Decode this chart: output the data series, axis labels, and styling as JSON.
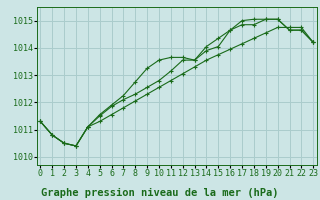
{
  "title": "Graphe pression niveau de la mer (hPa)",
  "background_color": "#cce5e5",
  "grid_color": "#aacccc",
  "line_color": "#1a6b1a",
  "x_values": [
    0,
    1,
    2,
    3,
    4,
    5,
    6,
    7,
    8,
    9,
    10,
    11,
    12,
    13,
    14,
    15,
    16,
    17,
    18,
    19,
    20,
    21,
    22,
    23
  ],
  "line1": [
    1011.3,
    1010.8,
    1010.5,
    1010.4,
    1011.1,
    1011.5,
    1011.85,
    1012.1,
    1012.3,
    1012.55,
    1012.8,
    1013.15,
    1013.55,
    1013.55,
    1013.9,
    1014.05,
    1014.65,
    1015.0,
    1015.05,
    1015.05,
    1015.05,
    1014.65,
    1014.65,
    1014.2
  ],
  "line2": [
    1011.3,
    1010.8,
    1010.5,
    1010.4,
    1011.1,
    1011.55,
    1011.9,
    1012.25,
    1012.75,
    1013.25,
    1013.55,
    1013.65,
    1013.65,
    1013.55,
    1014.05,
    1014.35,
    1014.65,
    1014.85,
    1014.85,
    1015.05,
    1015.05,
    1014.65,
    1014.65,
    1014.2
  ],
  "line3": [
    1011.3,
    1010.8,
    1010.5,
    1010.4,
    1011.1,
    1011.3,
    1011.55,
    1011.8,
    1012.05,
    1012.3,
    1012.55,
    1012.8,
    1013.05,
    1013.3,
    1013.55,
    1013.75,
    1013.95,
    1014.15,
    1014.35,
    1014.55,
    1014.75,
    1014.75,
    1014.75,
    1014.2
  ],
  "ylim": [
    1009.7,
    1015.5
  ],
  "yticks": [
    1010,
    1011,
    1012,
    1013,
    1014,
    1015
  ],
  "xlim": [
    -0.3,
    23.3
  ],
  "title_fontsize": 7.5,
  "tick_fontsize": 6
}
